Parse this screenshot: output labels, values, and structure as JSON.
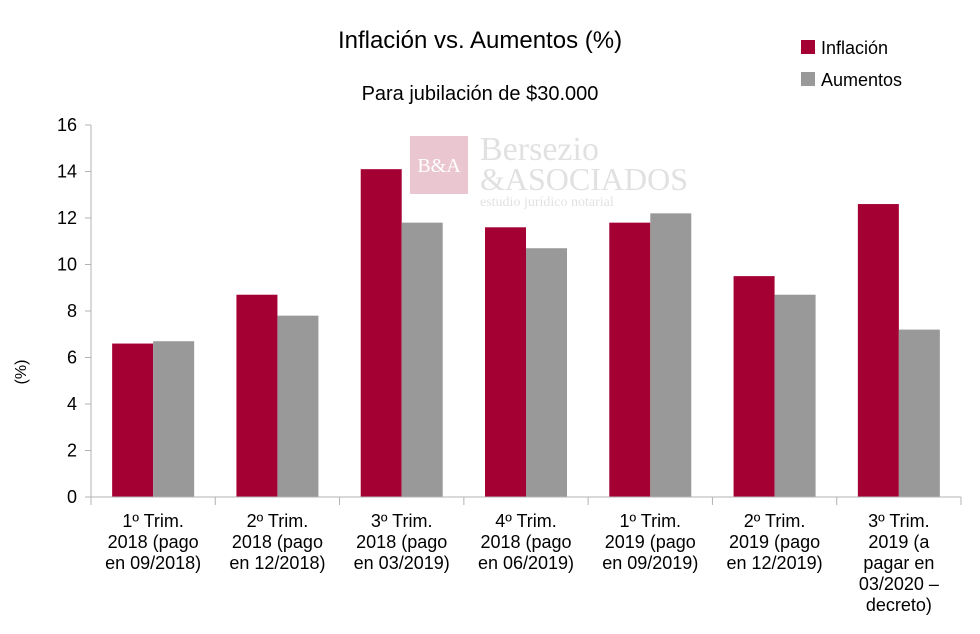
{
  "chart_data": {
    "type": "bar",
    "title": "Inflación vs. Aumentos (%)",
    "subtitle": "Para jubilación de $30.000",
    "ylabel": "(%)",
    "ylim": [
      0,
      16
    ],
    "yticks": [
      "0",
      "2",
      "4",
      "6",
      "8",
      "10",
      "12",
      "14",
      "16"
    ],
    "grid": false,
    "legend_position": "top-right",
    "categories": [
      [
        "1º Trim.",
        "2018 (pago",
        "en 09/2018)"
      ],
      [
        "2º Trim.",
        "2018 (pago",
        "en 12/2018)"
      ],
      [
        "3º Trim.",
        "2018 (pago",
        "en 03/2019)"
      ],
      [
        "4º Trim.",
        "2018 (pago",
        "en 06/2019)"
      ],
      [
        "1º Trim.",
        "2019 (pago",
        "en 09/2019)"
      ],
      [
        "2º Trim.",
        "2019 (pago",
        "en 12/2019)"
      ],
      [
        "3º Trim.",
        "2019 (a",
        "pagar en",
        "03/2020 –",
        "decreto)"
      ]
    ],
    "series": [
      {
        "name": "Inflación",
        "color": "#a50034",
        "values": [
          6.6,
          8.7,
          14.1,
          11.6,
          11.8,
          9.5,
          12.6
        ]
      },
      {
        "name": "Aumentos",
        "color": "#999999",
        "values": [
          6.7,
          7.8,
          11.8,
          10.7,
          12.2,
          8.7,
          7.2
        ]
      }
    ]
  },
  "watermark": {
    "logo_text": "B&A",
    "line1": "Bersezio",
    "line2": "&ASOCIADOS",
    "line3": "estudio jurídico notarial"
  }
}
